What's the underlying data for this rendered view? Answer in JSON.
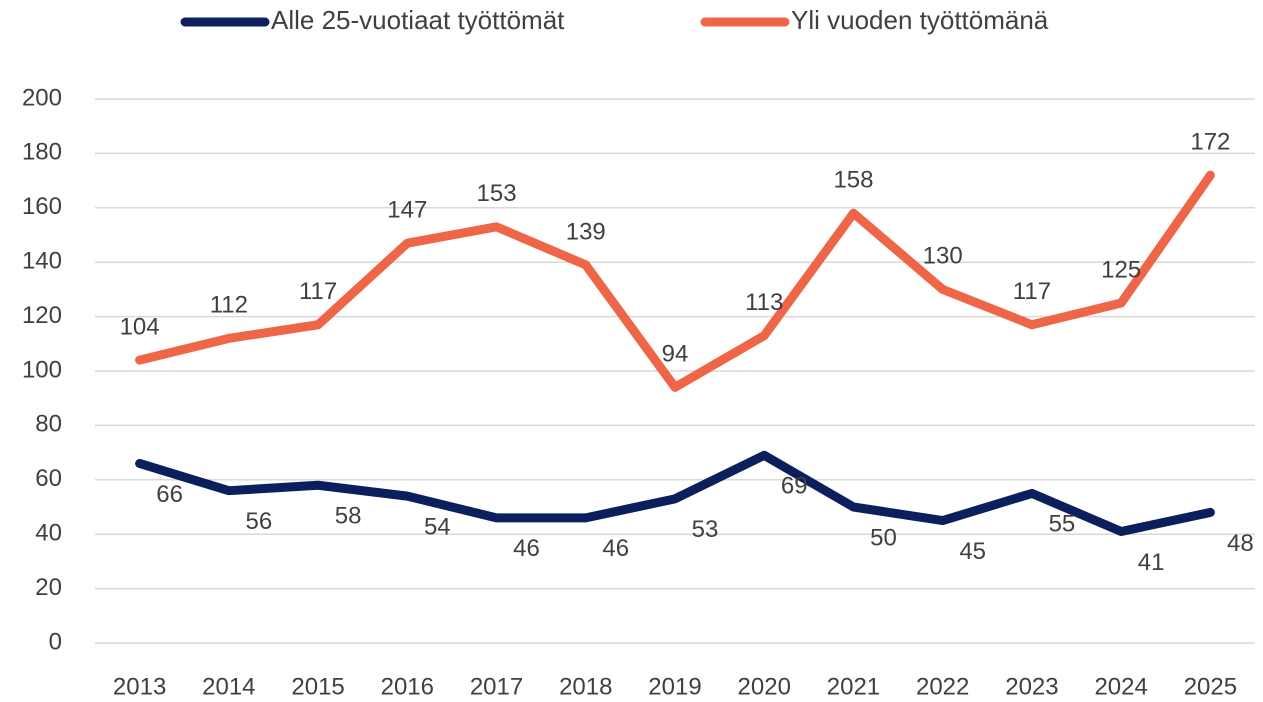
{
  "chart_data": {
    "type": "line",
    "categories": [
      "2013",
      "2014",
      "2015",
      "2016",
      "2017",
      "2018",
      "2019",
      "2020",
      "2021",
      "2022",
      "2023",
      "2024",
      "2025"
    ],
    "series": [
      {
        "name": "Alle 25-vuotiaat työttömät",
        "color": "#0b1f5c",
        "values": [
          66,
          56,
          58,
          54,
          46,
          46,
          53,
          69,
          50,
          45,
          55,
          41,
          48
        ]
      },
      {
        "name": "Yli vuoden työttömänä",
        "color": "#ef6548",
        "values": [
          104,
          112,
          117,
          147,
          153,
          139,
          94,
          113,
          158,
          130,
          117,
          125,
          172
        ]
      }
    ],
    "ylim": [
      0,
      200
    ],
    "yticks": [
      0,
      20,
      40,
      60,
      80,
      100,
      120,
      140,
      160,
      180,
      200
    ],
    "grid": true,
    "legend": "top"
  }
}
